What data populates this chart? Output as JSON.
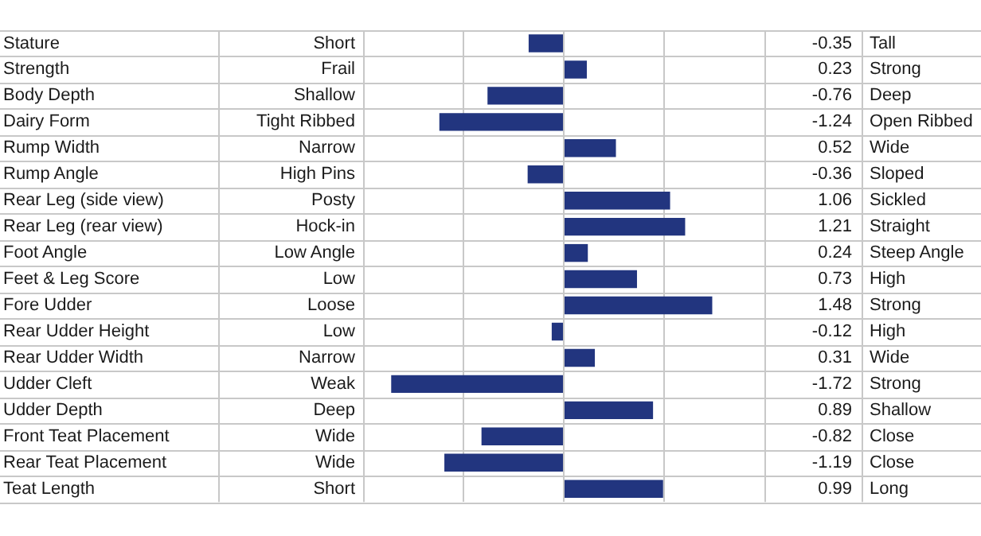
{
  "chart_data": {
    "type": "bar",
    "orientation": "horizontal",
    "categories": [
      "Stature",
      "Strength",
      "Body Depth",
      "Dairy Form",
      "Rump Width",
      "Rump Angle",
      "Rear Leg (side view)",
      "Rear Leg (rear view)",
      "Foot Angle",
      "Feet & Leg Score",
      "Fore Udder",
      "Rear Udder Height",
      "Rear Udder Width",
      "Udder Cleft",
      "Udder Depth",
      "Front Teat Placement",
      "Rear Teat Placement",
      "Teat Length"
    ],
    "values": [
      -0.35,
      0.23,
      -0.76,
      -1.24,
      0.52,
      -0.36,
      1.06,
      1.21,
      0.24,
      0.73,
      1.48,
      -0.12,
      0.31,
      -1.72,
      0.89,
      -0.82,
      -1.19,
      0.99
    ],
    "color": "#22357f",
    "data_labels": true,
    "xlim": [
      -2,
      2
    ],
    "xticks": [
      {
        "value": -1,
        "label": null
      },
      {
        "value": 0,
        "label": null
      },
      {
        "value": 1,
        "label": null
      }
    ],
    "grid": "x",
    "legend": false,
    "annotations": [
      "Short",
      "Tall",
      "Frail",
      "Strong",
      "Shallow",
      "Deep",
      "Tight Ribbed",
      "Open Ribbed",
      "Narrow",
      "Wide",
      "High Pins",
      "Sloped",
      "Posty",
      "Sickled",
      "Hock-in",
      "Straight",
      "Low Angle",
      "Steep Angle",
      "Low",
      "High",
      "Loose",
      "Strong",
      "Low",
      "High",
      "Narrow",
      "Wide",
      "Weak",
      "Strong",
      "Deep",
      "Shallow",
      "Wide",
      "Close",
      "Wide",
      "Close",
      "Short",
      "Long"
    ]
  }
}
